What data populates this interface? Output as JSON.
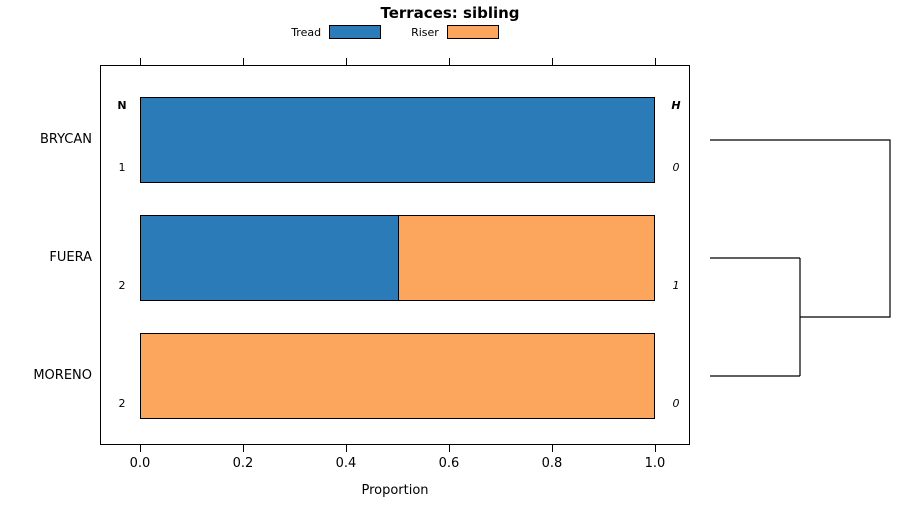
{
  "title": "Terraces: sibling",
  "legend": {
    "items": [
      {
        "label": "Tread",
        "color": "#2b7bb9"
      },
      {
        "label": "Riser",
        "color": "#fca55d"
      }
    ]
  },
  "chart_data": {
    "type": "bar",
    "orientation": "horizontal",
    "stacked": true,
    "title": "Terraces: sibling",
    "xlabel": "Proportion",
    "xlim": [
      0,
      1
    ],
    "x_ticks": [
      "0.0",
      "0.2",
      "0.4",
      "0.6",
      "0.8",
      "1.0"
    ],
    "grid": false,
    "legend_position": "top",
    "categories": [
      "BRYCAN",
      "FUERA",
      "MORENO"
    ],
    "series": [
      {
        "name": "Tread",
        "color": "#2b7bb9",
        "values": [
          1.0,
          0.5,
          0.0
        ]
      },
      {
        "name": "Riser",
        "color": "#fca55d",
        "values": [
          0.0,
          0.5,
          1.0
        ]
      }
    ],
    "column_annotations": {
      "left_header": "N",
      "left_values": [
        "1",
        "2",
        "2"
      ],
      "right_header": "H",
      "right_values": [
        "0",
        "1",
        "0"
      ]
    },
    "dendrogram": {
      "leaves": [
        "BRYCAN",
        "FUERA",
        "MORENO"
      ],
      "merges": [
        {
          "members": [
            "FUERA",
            "MORENO"
          ],
          "order": 1
        },
        {
          "members": [
            "BRYCAN",
            "FUERA+MORENO"
          ],
          "order": 2
        }
      ]
    }
  }
}
